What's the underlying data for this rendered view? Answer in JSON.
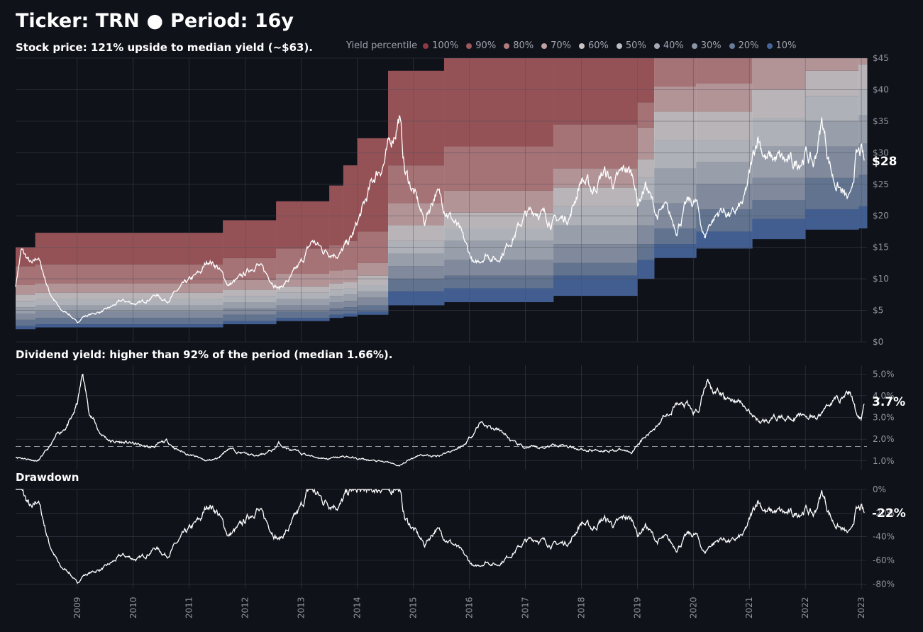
{
  "header": {
    "ticker_label": "Ticker: TRN",
    "separator": "●",
    "period_label": "Period: 16y"
  },
  "legend": {
    "title": "Yield percentile",
    "items": [
      {
        "label": "100%",
        "color": "#8e3a40"
      },
      {
        "label": "90%",
        "color": "#a0585c"
      },
      {
        "label": "80%",
        "color": "#b27b7e"
      },
      {
        "label": "70%",
        "color": "#c0a0a2"
      },
      {
        "label": "60%",
        "color": "#c8c2c4"
      },
      {
        "label": "50%",
        "color": "#bdbfc6"
      },
      {
        "label": "40%",
        "color": "#a5abb6"
      },
      {
        "label": "30%",
        "color": "#8a95a7"
      },
      {
        "label": "20%",
        "color": "#687c99"
      },
      {
        "label": "10%",
        "color": "#46659a"
      }
    ]
  },
  "chart_data": [
    {
      "type": "area",
      "title": "Stock price:  121% upside to median yield (~$63).",
      "y_ticks": [
        "$0",
        "$5",
        "$10",
        "$15",
        "$20",
        "$25",
        "$30",
        "$35",
        "$40",
        "$45"
      ],
      "ylim": [
        0,
        45
      ],
      "last_label": "$28",
      "price_anchors": [
        [
          2007.9,
          9
        ],
        [
          2008.0,
          14.5
        ],
        [
          2008.2,
          12
        ],
        [
          2008.3,
          13.5
        ],
        [
          2008.5,
          8
        ],
        [
          2008.7,
          5
        ],
        [
          2008.85,
          4.5
        ],
        [
          2009.0,
          3
        ],
        [
          2009.1,
          4
        ],
        [
          2009.3,
          4.5
        ],
        [
          2009.5,
          5
        ],
        [
          2009.8,
          6.5
        ],
        [
          2010.1,
          6
        ],
        [
          2010.4,
          7.5
        ],
        [
          2010.6,
          6.5
        ],
        [
          2010.9,
          9
        ],
        [
          2011.2,
          11
        ],
        [
          2011.35,
          13
        ],
        [
          2011.5,
          12
        ],
        [
          2011.7,
          9
        ],
        [
          2011.9,
          10
        ],
        [
          2012.2,
          12.5
        ],
        [
          2012.4,
          10.5
        ],
        [
          2012.6,
          8.5
        ],
        [
          2012.8,
          10
        ],
        [
          2013.0,
          12.5
        ],
        [
          2013.2,
          16
        ],
        [
          2013.4,
          14.5
        ],
        [
          2013.7,
          14
        ],
        [
          2013.9,
          16.5
        ],
        [
          2014.1,
          21
        ],
        [
          2014.3,
          26
        ],
        [
          2014.5,
          29
        ],
        [
          2014.65,
          33
        ],
        [
          2014.75,
          36
        ],
        [
          2014.85,
          27
        ],
        [
          2015.0,
          24
        ],
        [
          2015.2,
          19
        ],
        [
          2015.4,
          24
        ],
        [
          2015.6,
          21
        ],
        [
          2015.8,
          18
        ],
        [
          2016.0,
          14
        ],
        [
          2016.1,
          12
        ],
        [
          2016.3,
          14
        ],
        [
          2016.5,
          13
        ],
        [
          2016.8,
          17
        ],
        [
          2017.0,
          20
        ],
        [
          2017.2,
          21
        ],
        [
          2017.5,
          19
        ],
        [
          2017.8,
          20
        ],
        [
          2018.0,
          26
        ],
        [
          2018.2,
          24
        ],
        [
          2018.4,
          27
        ],
        [
          2018.6,
          25
        ],
        [
          2018.8,
          27.5
        ],
        [
          2018.95,
          26
        ],
        [
          2019.0,
          22
        ],
        [
          2019.15,
          25
        ],
        [
          2019.35,
          20
        ],
        [
          2019.5,
          21
        ],
        [
          2019.7,
          18
        ],
        [
          2019.9,
          22
        ],
        [
          2020.05,
          22
        ],
        [
          2020.2,
          16.5
        ],
        [
          2020.3,
          19
        ],
        [
          2020.5,
          21
        ],
        [
          2020.7,
          20
        ],
        [
          2020.9,
          22
        ],
        [
          2021.0,
          26
        ],
        [
          2021.15,
          33
        ],
        [
          2021.3,
          29
        ],
        [
          2021.5,
          29
        ],
        [
          2021.8,
          28
        ],
        [
          2022.0,
          30
        ],
        [
          2022.15,
          28
        ],
        [
          2022.3,
          35
        ],
        [
          2022.4,
          30
        ],
        [
          2022.5,
          26
        ],
        [
          2022.7,
          23
        ],
        [
          2022.8,
          22
        ],
        [
          2022.9,
          29
        ],
        [
          2023.0,
          30
        ],
        [
          2023.05,
          28
        ]
      ],
      "percentile_bands": [
        {
          "x0": 2007.9,
          "x1": 2008.25,
          "levels": [
            2.0,
            2.5,
            3.5,
            4.5,
            5.5,
            6.5,
            7.5,
            9,
            12,
            15
          ]
        },
        {
          "x0": 2008.25,
          "x1": 2011.6,
          "levels": [
            2.3,
            2.8,
            3.8,
            4.8,
            5.8,
            6.8,
            7.8,
            9.3,
            12.3,
            17.3
          ]
        },
        {
          "x0": 2011.6,
          "x1": 2012.55,
          "levels": [
            2.8,
            3.3,
            4.3,
            5.3,
            6.3,
            7.3,
            8.3,
            9.8,
            13.3,
            19.3
          ]
        },
        {
          "x0": 2012.55,
          "x1": 2013.5,
          "levels": [
            3.3,
            3.8,
            4.8,
            5.8,
            6.8,
            7.8,
            8.8,
            10.8,
            14.8,
            22.3
          ]
        },
        {
          "x0": 2013.5,
          "x1": 2013.75,
          "levels": [
            3.8,
            4.3,
            5.3,
            6.3,
            7.3,
            8.3,
            9.3,
            11.3,
            15.3,
            24.8
          ]
        },
        {
          "x0": 2013.75,
          "x1": 2014.0,
          "levels": [
            4.0,
            4.5,
            5.5,
            6.5,
            7.5,
            8.5,
            9.5,
            11.5,
            16.0,
            28.0
          ]
        },
        {
          "x0": 2014.0,
          "x1": 2014.55,
          "levels": [
            4.3,
            4.8,
            5.8,
            7.0,
            8.0,
            9.0,
            10.5,
            12.5,
            17.5,
            32.3
          ]
        },
        {
          "x0": 2014.55,
          "x1": 2015.55,
          "levels": [
            5.8,
            8.0,
            10.0,
            12.0,
            14.0,
            16.0,
            18.5,
            22.0,
            28.0,
            43.0
          ]
        },
        {
          "x0": 2015.55,
          "x1": 2017.5,
          "levels": [
            6.3,
            8.5,
            10.5,
            13.0,
            16.0,
            18.0,
            20.5,
            24.0,
            31.0,
            45.5
          ]
        },
        {
          "x0": 2017.5,
          "x1": 2019.0,
          "levels": [
            7.3,
            10.5,
            12.5,
            15.5,
            18.5,
            21.5,
            24.5,
            27.5,
            34.5,
            45.5
          ]
        },
        {
          "x0": 2019.0,
          "x1": 2019.3,
          "levels": [
            10.0,
            13.0,
            15.5,
            18.5,
            22.5,
            26.0,
            29.0,
            34.0,
            38.0,
            45.5
          ]
        },
        {
          "x0": 2019.3,
          "x1": 2020.05,
          "levels": [
            13.3,
            15.5,
            18.0,
            22.0,
            27.5,
            32.0,
            36.5,
            40.5,
            45,
            45.5
          ]
        },
        {
          "x0": 2020.05,
          "x1": 2021.05,
          "levels": [
            14.8,
            17.5,
            21.0,
            25.0,
            28.5,
            32.0,
            36.5,
            41.0,
            45,
            45.5
          ]
        },
        {
          "x0": 2021.05,
          "x1": 2022.0,
          "levels": [
            16.3,
            19.5,
            22.5,
            26.0,
            31.0,
            35.5,
            40.0,
            45,
            45.5,
            45.5
          ]
        },
        {
          "x0": 2022.0,
          "x1": 2022.95,
          "levels": [
            17.8,
            21.0,
            26.0,
            31.0,
            35.0,
            39.0,
            43.0,
            45,
            45.5,
            45.5
          ]
        },
        {
          "x0": 2022.95,
          "x1": 2023.1,
          "levels": [
            18.0,
            21.5,
            26.5,
            31.5,
            36.0,
            40.0,
            44.0,
            45,
            45.5,
            45.5
          ]
        }
      ]
    },
    {
      "type": "line",
      "title": "Dividend yield: higher than 92% of the period (median 1.66%).",
      "y_ticks": [
        "1.0%",
        "2.0%",
        "3.0%",
        "4.0%",
        "5.0%"
      ],
      "ylim": [
        0.6,
        5.4
      ],
      "median": 1.66,
      "last_label": "3.7%",
      "yield_anchors": [
        [
          2007.9,
          1.2
        ],
        [
          2008.3,
          1.0
        ],
        [
          2008.5,
          1.6
        ],
        [
          2008.65,
          2.2
        ],
        [
          2008.8,
          2.6
        ],
        [
          2008.9,
          2.9
        ],
        [
          2009.0,
          3.6
        ],
        [
          2009.1,
          5.0
        ],
        [
          2009.2,
          3.4
        ],
        [
          2009.4,
          2.3
        ],
        [
          2009.6,
          1.9
        ],
        [
          2010.0,
          1.8
        ],
        [
          2010.3,
          1.6
        ],
        [
          2010.6,
          1.9
        ],
        [
          2010.8,
          1.5
        ],
        [
          2011.0,
          1.3
        ],
        [
          2011.3,
          1.0
        ],
        [
          2011.5,
          1.1
        ],
        [
          2011.7,
          1.6
        ],
        [
          2011.9,
          1.4
        ],
        [
          2012.2,
          1.2
        ],
        [
          2012.5,
          1.5
        ],
        [
          2012.6,
          1.8
        ],
        [
          2012.8,
          1.5
        ],
        [
          2013.2,
          1.2
        ],
        [
          2013.5,
          1.1
        ],
        [
          2013.8,
          1.2
        ],
        [
          2014.0,
          1.1
        ],
        [
          2014.3,
          1.0
        ],
        [
          2014.6,
          0.9
        ],
        [
          2014.75,
          0.75
        ],
        [
          2014.9,
          1.0
        ],
        [
          2015.1,
          1.3
        ],
        [
          2015.4,
          1.2
        ],
        [
          2015.6,
          1.4
        ],
        [
          2015.9,
          1.7
        ],
        [
          2016.1,
          2.4
        ],
        [
          2016.2,
          2.8
        ],
        [
          2016.4,
          2.5
        ],
        [
          2016.6,
          2.3
        ],
        [
          2016.8,
          1.8
        ],
        [
          2017.0,
          1.6
        ],
        [
          2017.3,
          1.6
        ],
        [
          2017.6,
          1.8
        ],
        [
          2017.9,
          1.6
        ],
        [
          2018.1,
          1.5
        ],
        [
          2018.4,
          1.5
        ],
        [
          2018.7,
          1.5
        ],
        [
          2018.9,
          1.4
        ],
        [
          2019.0,
          1.8
        ],
        [
          2019.2,
          2.2
        ],
        [
          2019.3,
          2.5
        ],
        [
          2019.5,
          3.2
        ],
        [
          2019.7,
          3.6
        ],
        [
          2019.9,
          3.5
        ],
        [
          2020.0,
          3.2
        ],
        [
          2020.1,
          3.4
        ],
        [
          2020.25,
          4.8
        ],
        [
          2020.4,
          4.2
        ],
        [
          2020.6,
          3.8
        ],
        [
          2020.8,
          3.8
        ],
        [
          2021.0,
          3.2
        ],
        [
          2021.2,
          2.8
        ],
        [
          2021.5,
          3.0
        ],
        [
          2021.8,
          3.0
        ],
        [
          2022.0,
          3.1
        ],
        [
          2022.2,
          2.9
        ],
        [
          2022.3,
          3.2
        ],
        [
          2022.4,
          3.6
        ],
        [
          2022.6,
          3.9
        ],
        [
          2022.8,
          4.2
        ],
        [
          2022.9,
          3.3
        ],
        [
          2023.0,
          3.0
        ],
        [
          2023.05,
          3.7
        ]
      ]
    },
    {
      "type": "line",
      "title": "Drawdown",
      "y_ticks": [
        "-80%",
        "-60%",
        "-40%",
        "-20%",
        "0%"
      ],
      "ylim": [
        -84,
        0
      ],
      "last_label": "-22%",
      "x_ticks": [
        "2009",
        "2010",
        "2011",
        "2012",
        "2013",
        "2014",
        "2015",
        "2016",
        "2017",
        "2018",
        "2019",
        "2020",
        "2021",
        "2022",
        "2023"
      ]
    }
  ]
}
